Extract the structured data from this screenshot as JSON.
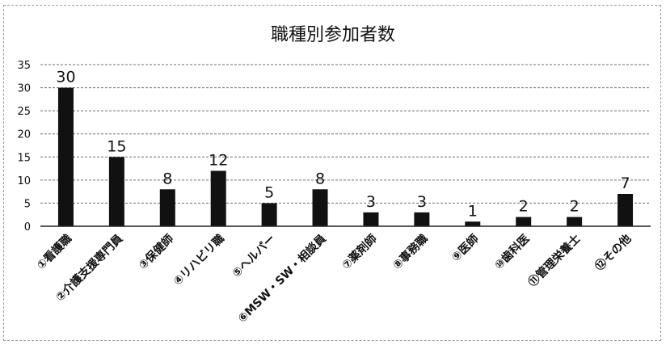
{
  "chart_data": {
    "type": "bar",
    "title": "職種別参加者数",
    "xlabel": "",
    "ylabel": "",
    "ylim": [
      0,
      35
    ],
    "yticks": [
      0,
      5,
      10,
      15,
      20,
      25,
      30,
      35
    ],
    "grid": true,
    "legend": "none",
    "bar_color": "#111111",
    "categories": [
      "①看護職",
      "②介護支援専門員",
      "③保健師",
      "④リハビリ職",
      "⑤ヘルパー",
      "⑥MSW・SW・相談員",
      "⑦薬剤師",
      "⑧事務職",
      "⑨医師",
      "⑩歯科医",
      "⑪管理栄養士",
      "⑫その他"
    ],
    "values": [
      30,
      15,
      8,
      12,
      5,
      8,
      3,
      3,
      1,
      2,
      2,
      7
    ],
    "data_labels": [
      "30",
      "15",
      "8",
      "12",
      "5",
      "8",
      "3",
      "3",
      "1",
      "2",
      "2",
      "7"
    ]
  }
}
